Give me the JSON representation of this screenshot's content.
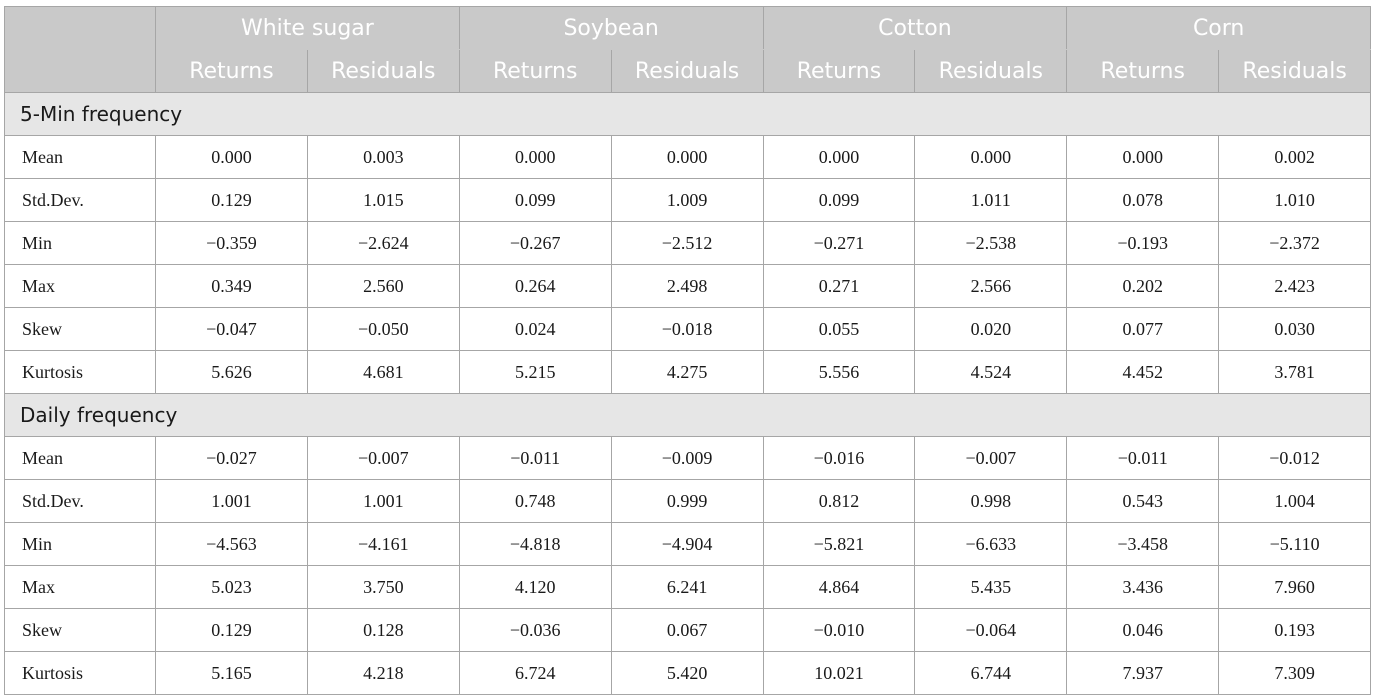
{
  "header": {
    "groups": [
      "White sugar",
      "Soybean",
      "Cotton",
      "Corn"
    ],
    "sub": [
      "Returns",
      "Residuals"
    ]
  },
  "sections": [
    {
      "title": "5-Min frequency",
      "rows": [
        {
          "label": "Mean",
          "values": [
            "0.000",
            "0.003",
            "0.000",
            "0.000",
            "0.000",
            "0.000",
            "0.000",
            "0.002"
          ]
        },
        {
          "label": "Std.Dev.",
          "values": [
            "0.129",
            "1.015",
            "0.099",
            "1.009",
            "0.099",
            "1.011",
            "0.078",
            "1.010"
          ]
        },
        {
          "label": "Min",
          "values": [
            "−0.359",
            "−2.624",
            "−0.267",
            "−2.512",
            "−0.271",
            "−2.538",
            "−0.193",
            "−2.372"
          ]
        },
        {
          "label": "Max",
          "values": [
            "0.349",
            "2.560",
            "0.264",
            "2.498",
            "0.271",
            "2.566",
            "0.202",
            "2.423"
          ]
        },
        {
          "label": "Skew",
          "values": [
            "−0.047",
            "−0.050",
            "0.024",
            "−0.018",
            "0.055",
            "0.020",
            "0.077",
            "0.030"
          ]
        },
        {
          "label": "Kurtosis",
          "values": [
            "5.626",
            "4.681",
            "5.215",
            "4.275",
            "5.556",
            "4.524",
            "4.452",
            "3.781"
          ]
        }
      ]
    },
    {
      "title": "Daily frequency",
      "rows": [
        {
          "label": "Mean",
          "values": [
            "−0.027",
            "−0.007",
            "−0.011",
            "−0.009",
            "−0.016",
            "−0.007",
            "−0.011",
            "−0.012"
          ]
        },
        {
          "label": "Std.Dev.",
          "values": [
            "1.001",
            "1.001",
            "0.748",
            "0.999",
            "0.812",
            "0.998",
            "0.543",
            "1.004"
          ]
        },
        {
          "label": "Min",
          "values": [
            "−4.563",
            "−4.161",
            "−4.818",
            "−4.904",
            "−5.821",
            "−6.633",
            "−3.458",
            "−5.110"
          ]
        },
        {
          "label": "Max",
          "values": [
            "5.023",
            "3.750",
            "4.120",
            "6.241",
            "4.864",
            "5.435",
            "3.436",
            "7.960"
          ]
        },
        {
          "label": "Skew",
          "values": [
            "0.129",
            "0.128",
            "−0.036",
            "0.067",
            "−0.010",
            "−0.064",
            "0.046",
            "0.193"
          ]
        },
        {
          "label": "Kurtosis",
          "values": [
            "5.165",
            "4.218",
            "6.724",
            "5.420",
            "10.021",
            "6.744",
            "7.937",
            "7.309"
          ]
        }
      ]
    }
  ]
}
